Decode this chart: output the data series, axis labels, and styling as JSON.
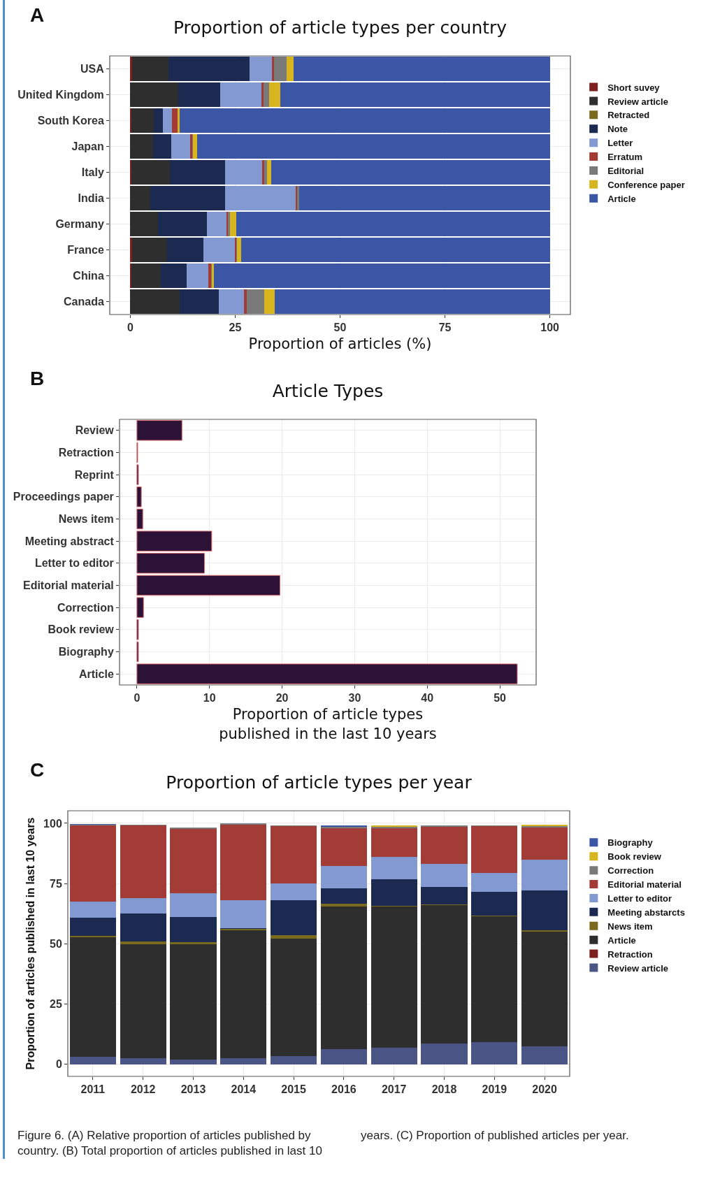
{
  "chart_data": [
    {
      "type": "bar",
      "orientation": "horizontal",
      "stacked": true,
      "title": "Proportion of article types per country",
      "xlabel": "Proportion of articles (%)",
      "annotations": [
        "A"
      ],
      "categories": [
        "USA",
        "United Kingdom",
        "South Korea",
        "Japan",
        "Italy",
        "India",
        "Germany",
        "France",
        "China",
        "Canada"
      ],
      "xlim": [
        -4.9,
        104.9
      ],
      "xticks": [
        0,
        25,
        50,
        75,
        100
      ],
      "grid": true,
      "legend": "right",
      "series": [
        {
          "name": "Short suvey",
          "color": "#7b1f1f",
          "values": [
            0.4,
            null,
            0.2,
            null,
            0.2,
            null,
            null,
            0.5,
            0.2,
            null
          ]
        },
        {
          "name": "Review article",
          "color": "#2e2e2e",
          "values": [
            8.7,
            11.4,
            5.4,
            5.4,
            9.3,
            4.7,
            6.6,
            8.2,
            7.1,
            11.7
          ]
        },
        {
          "name": "Retracted",
          "color": "#7a6a1e",
          "values": [
            null,
            null,
            null,
            null,
            null,
            null,
            null,
            null,
            null,
            null
          ]
        },
        {
          "name": "Note",
          "color": "#1c2a52",
          "values": [
            19.3,
            10.0,
            2.2,
            4.4,
            13.1,
            17.9,
            11.6,
            8.7,
            6.1,
            9.4
          ]
        },
        {
          "name": "Letter",
          "color": "#8399d1",
          "values": [
            5.4,
            9.8,
            2.1,
            4.4,
            8.8,
            16.8,
            4.8,
            7.6,
            5.2,
            6.0
          ]
        },
        {
          "name": "Erratum",
          "color": "#a23a36",
          "values": [
            0.5,
            0.5,
            1.3,
            0.5,
            0.5,
            0.4,
            0.3,
            0.3,
            0.6,
            0.6
          ]
        },
        {
          "name": "Editorial",
          "color": "#7a7a7a",
          "values": [
            3.0,
            1.4,
            null,
            0.2,
            0.7,
            0.4,
            0.4,
            0.2,
            0.3,
            4.3
          ]
        },
        {
          "name": "Conference paper",
          "color": "#d6b51f",
          "values": [
            1.7,
            2.6,
            0.6,
            1.0,
            1.0,
            null,
            1.6,
            1.0,
            0.4,
            2.5
          ]
        },
        {
          "name": "Article",
          "color": "#3a56a5",
          "values": [
            61.0,
            64.3,
            88.2,
            84.1,
            66.4,
            59.8,
            74.7,
            73.5,
            80.1,
            65.5
          ]
        }
      ]
    },
    {
      "type": "bar",
      "orientation": "horizontal",
      "title": "Article Types",
      "xlabel": "Proportion of article types\npublished in the last 10 years",
      "annotations": [
        "B"
      ],
      "categories": [
        "Review",
        "Retraction",
        "Reprint",
        "Proceedings paper",
        "News item",
        "Meeting abstract",
        "Letter to editor",
        "Editorial material",
        "Correction",
        "Book review",
        "Biography",
        "Article"
      ],
      "values": [
        6.2,
        0.1,
        0.2,
        0.6,
        0.8,
        10.3,
        9.3,
        19.7,
        0.9,
        0.2,
        0.2,
        52.4
      ],
      "color": "#2d1238",
      "xlim": [
        -2.4,
        55.0
      ],
      "xticks": [
        0,
        10,
        20,
        30,
        40,
        50
      ],
      "grid": true
    },
    {
      "type": "bar",
      "stacked": true,
      "title": "Proportion of article types per year",
      "ylabel": "Proportion of articles published in last 10 years",
      "annotations": [
        "C",
        "Figure 6. (A) Relative proportion of articles published by country. (B) Total proportion of articles published in last 10 years. (C) Proportion of published articles per year."
      ],
      "categories": [
        "2011",
        "2012",
        "2013",
        "2014",
        "2015",
        "2016",
        "2017",
        "2018",
        "2019",
        "2020"
      ],
      "ylim": [
        -5.0,
        105.2
      ],
      "yticks": [
        0,
        25,
        50,
        75,
        100
      ],
      "grid": true,
      "legend": "right",
      "series": [
        {
          "name": "Review article",
          "color": "#4a5585",
          "values": [
            3.2,
            2.4,
            2.0,
            2.5,
            3.5,
            6.3,
            6.8,
            8.5,
            9.2,
            7.6
          ]
        },
        {
          "name": "Retraction",
          "color": "#7b1f1f",
          "values": [
            null,
            null,
            null,
            null,
            null,
            null,
            null,
            null,
            null,
            null
          ]
        },
        {
          "name": "Article",
          "color": "#2e2e2e",
          "values": [
            49.4,
            47.4,
            47.8,
            53.1,
            48.5,
            59.3,
            58.6,
            57.5,
            52.3,
            47.4
          ]
        },
        {
          "name": "News item",
          "color": "#7a6a1e",
          "values": [
            0.7,
            1.1,
            0.9,
            0.7,
            1.5,
            1.1,
            0.4,
            0.2,
            0.2,
            0.5
          ]
        },
        {
          "name": "Meeting abstarcts",
          "color": "#1c2a52",
          "values": [
            7.4,
            11.6,
            10.5,
            0.2,
            14.5,
            6.3,
            11.1,
            7.4,
            10.0,
            16.6
          ]
        },
        {
          "name": "Letter to editor",
          "color": "#8399d1",
          "values": [
            6.9,
            6.5,
            9.8,
            11.7,
            7.1,
            9.3,
            9.3,
            9.5,
            7.7,
            12.7
          ]
        },
        {
          "name": "Editorial material",
          "color": "#a33b36",
          "values": [
            31.6,
            30.1,
            26.6,
            31.1,
            23.6,
            15.6,
            11.7,
            15.4,
            19.3,
            13.3
          ]
        },
        {
          "name": "Correction",
          "color": "#7a7a7a",
          "values": [
            0.2,
            0.3,
            0.7,
            0.6,
            0.3,
            0.6,
            0.6,
            0.7,
            0.4,
            0.6
          ]
        },
        {
          "name": "Book review",
          "color": "#d6b51f",
          "values": [
            null,
            null,
            null,
            null,
            null,
            null,
            0.6,
            null,
            null,
            0.8
          ]
        },
        {
          "name": "Biography",
          "color": "#3a56a5",
          "values": [
            0.4,
            null,
            null,
            null,
            null,
            0.7,
            null,
            null,
            null,
            null
          ]
        }
      ]
    }
  ]
}
